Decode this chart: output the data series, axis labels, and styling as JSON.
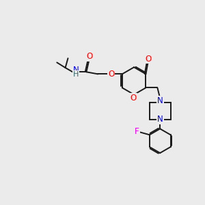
{
  "bg_color": "#ebebeb",
  "bond_color": "#1a1a1a",
  "atom_colors": {
    "O": "#ff0000",
    "N": "#0000ee",
    "F": "#ee00ee",
    "H": "#336666",
    "C": "#1a1a1a"
  },
  "figsize": [
    3.0,
    3.0
  ],
  "dpi": 100,
  "lw": 1.4,
  "fs": 8.5
}
